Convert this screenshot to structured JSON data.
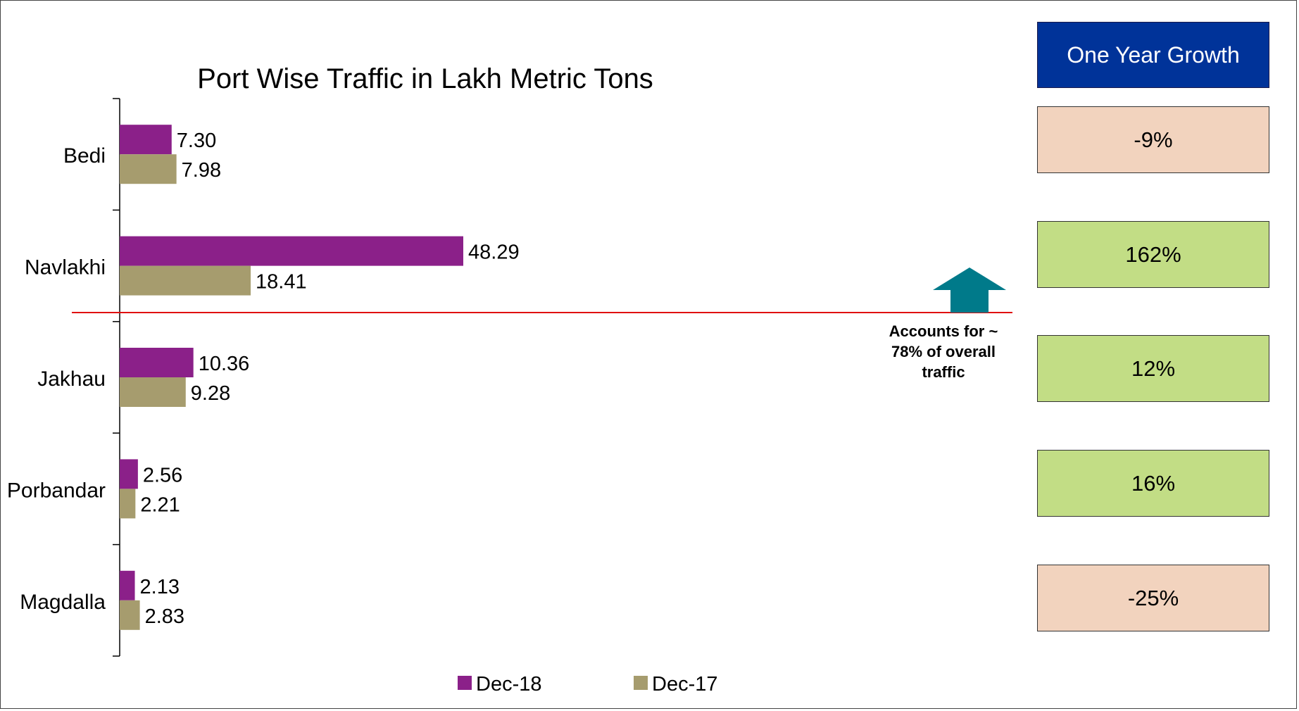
{
  "chart_data": {
    "type": "bar",
    "orientation": "horizontal",
    "title": "Port Wise Traffic in Lakh Metric Tons",
    "categories": [
      "Bedi",
      "Navlakhi",
      "Jakhau",
      "Porbandar",
      "Magdalla"
    ],
    "series": [
      {
        "name": "Dec-18",
        "color": "#8B2089",
        "values": [
          7.3,
          48.29,
          10.36,
          2.56,
          2.13
        ],
        "labels": [
          "7.30",
          "48.29",
          "10.36",
          "2.56",
          "2.13"
        ]
      },
      {
        "name": "Dec-17",
        "color": "#A69C6E",
        "values": [
          7.98,
          18.41,
          9.28,
          2.21,
          2.83
        ],
        "labels": [
          "7.98",
          "18.41",
          "9.28",
          "2.21",
          "2.83"
        ]
      }
    ],
    "legend_position": "bottom",
    "grid": false
  },
  "growth": {
    "header": "One Year Growth",
    "header_color": "#003399",
    "items": [
      {
        "value": "-9%",
        "color": "#F2D3BE"
      },
      {
        "value": "162%",
        "color": "#C2DD85"
      },
      {
        "value": "12%",
        "color": "#C2DD85"
      },
      {
        "value": "16%",
        "color": "#C2DD85"
      },
      {
        "value": "-25%",
        "color": "#F2D3BE"
      }
    ]
  },
  "annotation": {
    "line1": "Accounts for ~",
    "line2": "78% of overall",
    "line3": "traffic",
    "arrow_color": "#007A8A",
    "divider_color": "#E01010"
  }
}
